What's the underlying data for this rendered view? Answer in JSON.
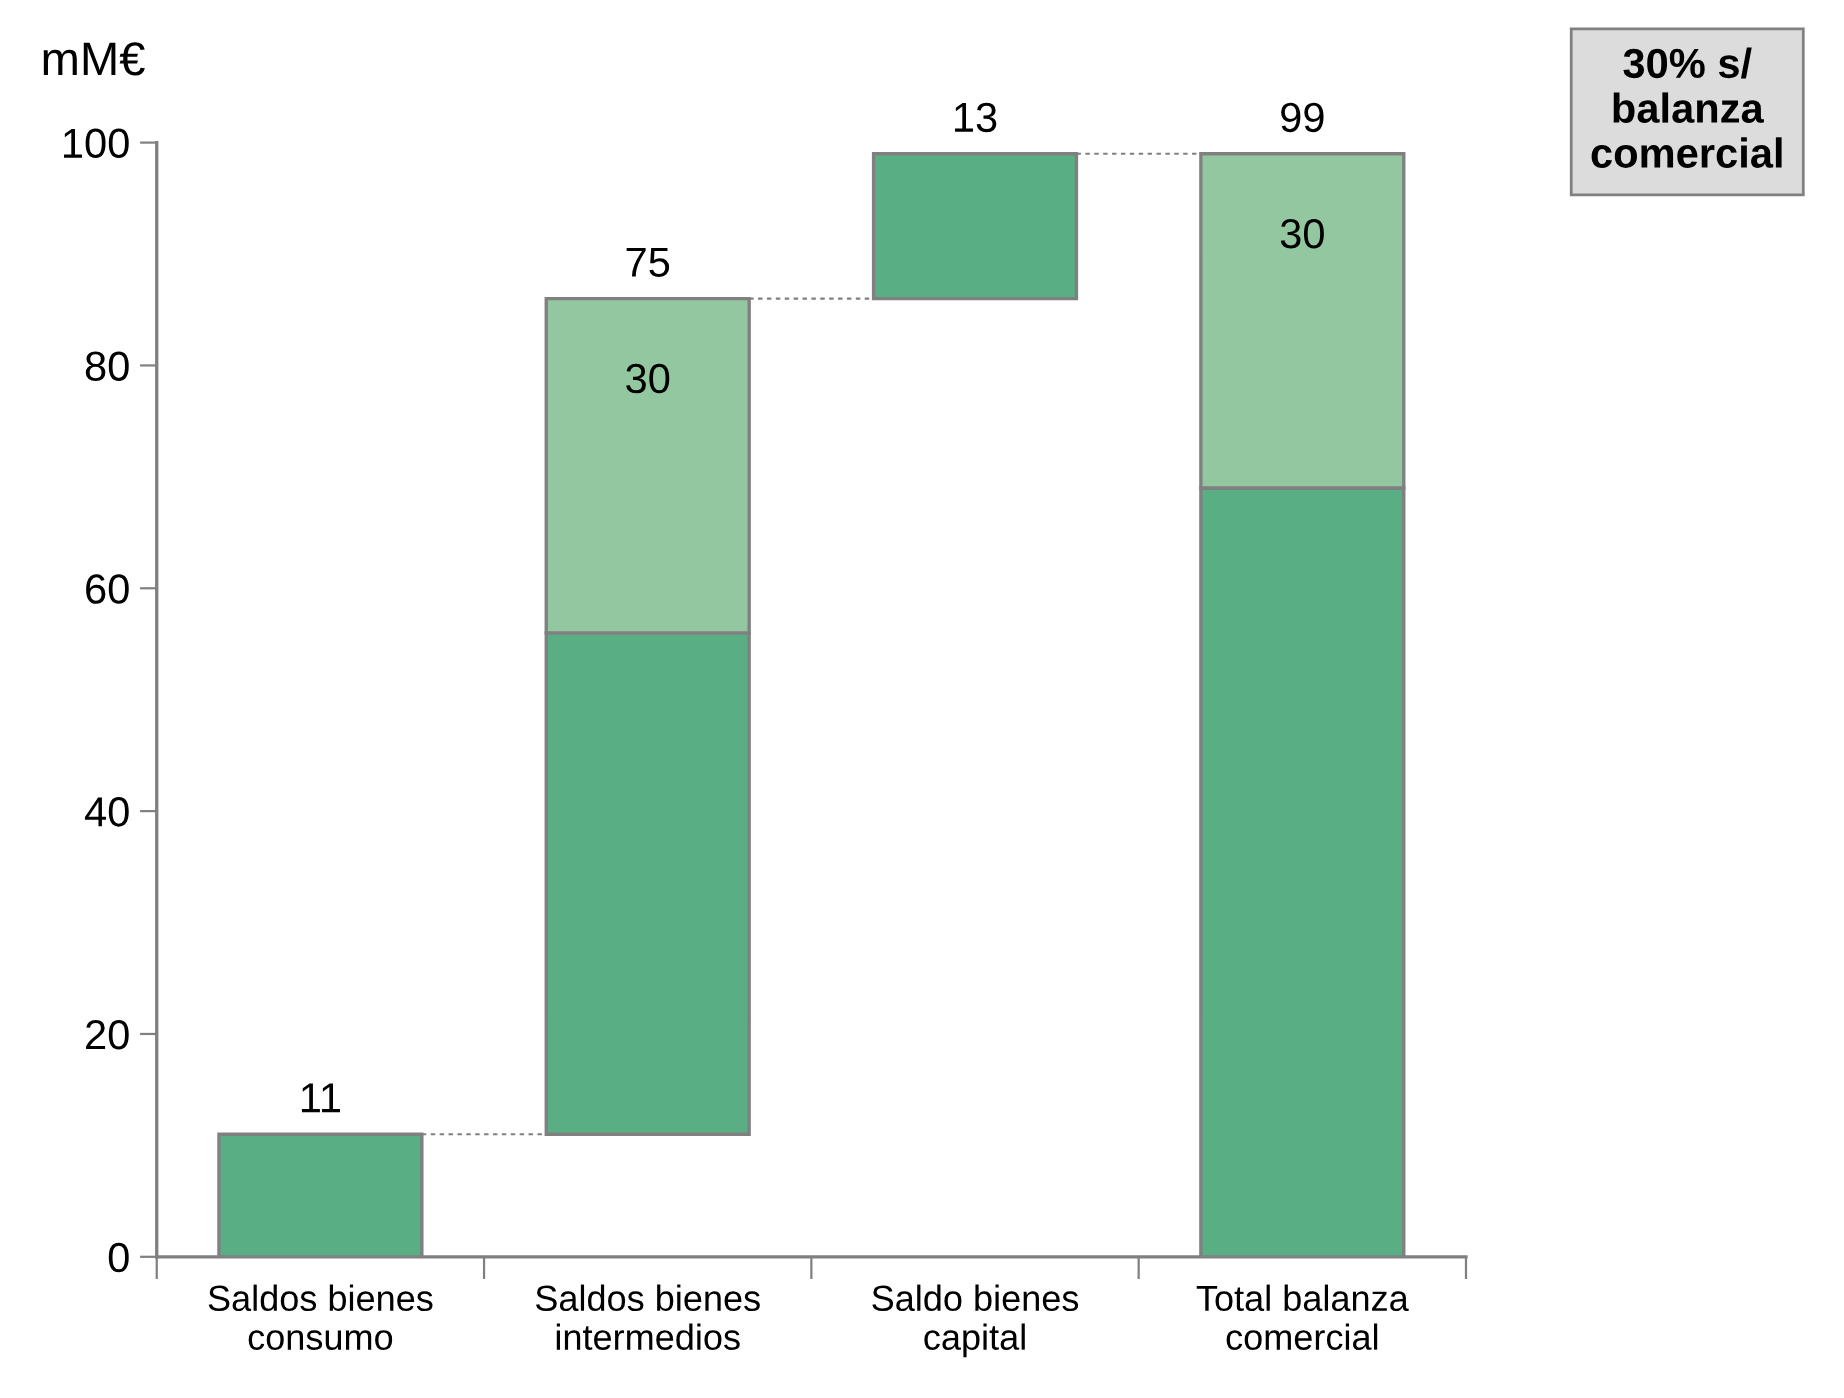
{
  "chart_data": {
    "type": "bar",
    "ylabel": "mM€",
    "categories": [
      "Saldos bienes\nconsumo",
      "Saldos bienes\nintermedios",
      "Saldo bienes\ncapital",
      "Total balanza\ncomercial"
    ],
    "series": [
      {
        "color": "#5aae84",
        "values": [
          11,
          45,
          13,
          69
        ],
        "base": [
          0,
          11,
          86,
          0
        ]
      },
      {
        "color": "#92c7a0",
        "values": [
          null,
          30,
          null,
          30
        ],
        "base": [
          null,
          56,
          null,
          69
        ],
        "value_labels": [
          null,
          "30",
          null,
          "30"
        ]
      }
    ],
    "ylim": [
      0,
      100
    ],
    "yticks": [
      0,
      20,
      40,
      60,
      80,
      100
    ],
    "annotations": [
      {
        "text": "11",
        "x": "Saldos bienes\nconsumo",
        "y": 11
      },
      {
        "text": "75",
        "x": "Saldos bienes\nintermedios",
        "y": 86
      },
      {
        "text": "13",
        "x": "Saldo bienes\ncapital",
        "y": 99
      },
      {
        "text": "99",
        "x": "Total balanza\ncomercial",
        "y": 99
      },
      "30% s/\nbalanza\ncomercial"
    ],
    "grid": false
  }
}
